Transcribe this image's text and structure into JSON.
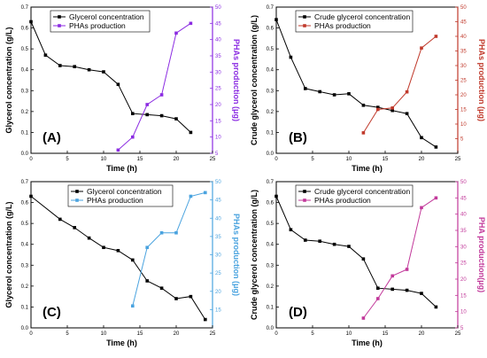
{
  "chart_data": [
    {
      "type": "line",
      "panel_label": "(A)",
      "xlabel": "Time (h)",
      "ylabel": "Glycerol concentration (g/L)",
      "y2label": "PHAs production (μg)",
      "xlim": [
        0,
        25
      ],
      "ylim": [
        0,
        0.7
      ],
      "y2lim": [
        5,
        50
      ],
      "xticks": [
        0,
        5,
        10,
        15,
        20,
        25
      ],
      "yticks": [
        0.0,
        0.1,
        0.2,
        0.3,
        0.4,
        0.5,
        0.6,
        0.7
      ],
      "y2ticks": [
        5,
        10,
        15,
        20,
        25,
        30,
        35,
        40,
        45,
        50
      ],
      "legend_position": "top-left",
      "series": [
        {
          "name": "Glycerol concentration",
          "axis": "left",
          "marker": "square",
          "color": "#000000",
          "x": [
            0,
            2,
            4,
            6,
            8,
            10,
            12,
            14,
            16,
            18,
            20,
            22
          ],
          "y": [
            0.63,
            0.47,
            0.42,
            0.415,
            0.4,
            0.39,
            0.33,
            0.19,
            0.185,
            0.18,
            0.165,
            0.1
          ]
        },
        {
          "name": "PHAs production",
          "axis": "right",
          "marker": "square",
          "color": "#8b2be2",
          "x": [
            12,
            14,
            16,
            18,
            20,
            22
          ],
          "y": [
            6,
            10,
            20,
            23,
            42,
            45
          ]
        }
      ]
    },
    {
      "type": "line",
      "panel_label": "(B)",
      "xlabel": "Time (h)",
      "ylabel": "Crude glycerol concentration (g/L)",
      "y2label": "PHAs production (μg)",
      "xlim": [
        0,
        25
      ],
      "ylim": [
        0,
        0.7
      ],
      "y2lim": [
        0,
        50
      ],
      "xticks": [
        0,
        5,
        10,
        15,
        20,
        25
      ],
      "yticks": [
        0.0,
        0.1,
        0.2,
        0.3,
        0.4,
        0.5,
        0.6,
        0.7
      ],
      "y2ticks": [
        5,
        10,
        15,
        20,
        25,
        30,
        35,
        40,
        45,
        50
      ],
      "legend_position": "top-left",
      "series": [
        {
          "name": "Crude glycerol concentration",
          "axis": "left",
          "marker": "square",
          "color": "#000000",
          "x": [
            0,
            2,
            4,
            6,
            8,
            10,
            12,
            14,
            16,
            18,
            20,
            22
          ],
          "y": [
            0.64,
            0.46,
            0.31,
            0.295,
            0.28,
            0.285,
            0.23,
            0.22,
            0.205,
            0.19,
            0.075,
            0.03
          ]
        },
        {
          "name": "PHAs production",
          "axis": "right",
          "marker": "square",
          "color": "#c0392b",
          "x": [
            12,
            14,
            16,
            18,
            20,
            22
          ],
          "y": [
            7,
            15,
            15.5,
            21,
            36,
            40
          ]
        }
      ]
    },
    {
      "type": "line",
      "panel_label": "(C)",
      "xlabel": "Time (h)",
      "ylabel": "Glycerol concentration (g/L)",
      "y2label": "PHAs production (μg)",
      "xlim": [
        0,
        25
      ],
      "ylim": [
        0,
        0.7
      ],
      "y2lim": [
        10,
        50
      ],
      "xticks": [
        0,
        5,
        10,
        15,
        20,
        25
      ],
      "yticks": [
        0.0,
        0.1,
        0.2,
        0.3,
        0.4,
        0.5,
        0.6,
        0.7
      ],
      "y2ticks": [
        15,
        20,
        25,
        30,
        35,
        40,
        45,
        50
      ],
      "legend_position": "top-center",
      "series": [
        {
          "name": "Glycerol concentration",
          "axis": "left",
          "marker": "square",
          "color": "#000000",
          "x": [
            0,
            4,
            6,
            8,
            10,
            12,
            14,
            16,
            18,
            20,
            22,
            24
          ],
          "y": [
            0.63,
            0.52,
            0.48,
            0.43,
            0.385,
            0.37,
            0.325,
            0.225,
            0.19,
            0.14,
            0.15,
            0.04
          ]
        },
        {
          "name": "PHAs production",
          "axis": "right",
          "marker": "square",
          "color": "#4aa3df",
          "x": [
            14,
            16,
            18,
            20,
            22,
            24
          ],
          "y": [
            16,
            32,
            36,
            36,
            46,
            47
          ]
        }
      ]
    },
    {
      "type": "line",
      "panel_label": "(D)",
      "xlabel": "Time (h)",
      "ylabel": "Crude glycerol concentration (g/L)",
      "y2label": "PHA production(μg)",
      "xlim": [
        0,
        25
      ],
      "ylim": [
        0,
        0.7
      ],
      "y2lim": [
        5,
        50
      ],
      "xticks": [
        0,
        5,
        10,
        15,
        20,
        25
      ],
      "yticks": [
        0.0,
        0.1,
        0.2,
        0.3,
        0.4,
        0.5,
        0.6,
        0.7
      ],
      "y2ticks": [
        5,
        10,
        15,
        20,
        25,
        30,
        35,
        40,
        45,
        50
      ],
      "legend_position": "top-left",
      "series": [
        {
          "name": "Crude glycerol concentration",
          "axis": "left",
          "marker": "square",
          "color": "#000000",
          "x": [
            0,
            2,
            4,
            6,
            8,
            10,
            12,
            14,
            16,
            18,
            20,
            22
          ],
          "y": [
            0.63,
            0.47,
            0.42,
            0.415,
            0.4,
            0.39,
            0.33,
            0.19,
            0.185,
            0.18,
            0.165,
            0.1
          ]
        },
        {
          "name": "PHAs production",
          "axis": "right",
          "marker": "square",
          "color": "#c2389a",
          "x": [
            12,
            14,
            16,
            18,
            20,
            22
          ],
          "y": [
            8,
            14,
            21,
            23,
            42,
            45
          ]
        }
      ]
    }
  ]
}
